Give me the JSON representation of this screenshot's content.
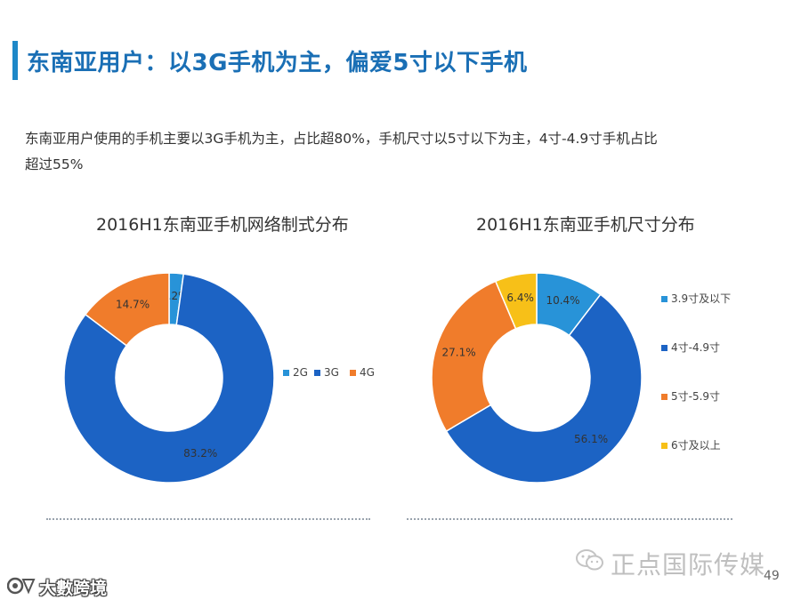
{
  "page": {
    "title": "东南亚用户：以3G手机为主，偏爱5寸以下手机",
    "description": "东南亚用户使用的手机主要以3G手机为主，占比超80%，手机尺寸以5寸以下为主，4寸-4.9寸手机占比超过55%",
    "page_number": "49",
    "watermark": "正点国际传媒",
    "brand_mark": "大數跨境"
  },
  "colors": {
    "blue": "#1c63c4",
    "light_blue": "#2893d8",
    "orange": "#f07c2b",
    "yellow": "#f7c018",
    "title": "#1a6fb5"
  },
  "chart_data": [
    {
      "type": "pie",
      "donut": true,
      "title": "2016H1东南亚手机网络制式分布",
      "legend_position": "right",
      "slices": [
        {
          "name": "2G",
          "value": 2.2,
          "label": "2.2%",
          "color": "#2893d8"
        },
        {
          "name": "3G",
          "value": 83.2,
          "label": "83.2%",
          "color": "#1c63c4"
        },
        {
          "name": "4G",
          "value": 14.7,
          "label": "14.7%",
          "color": "#f07c2b"
        }
      ]
    },
    {
      "type": "pie",
      "donut": true,
      "title": "2016H1东南亚手机尺寸分布",
      "legend_position": "right",
      "slices": [
        {
          "name": "3.9寸及以下",
          "value": 10.4,
          "label": "10.4%",
          "color": "#2893d8"
        },
        {
          "name": "4寸-4.9寸",
          "value": 56.1,
          "label": "56.1%",
          "color": "#1c63c4"
        },
        {
          "name": "5寸-5.9寸",
          "value": 27.1,
          "label": "27.1%",
          "color": "#f07c2b"
        },
        {
          "name": "6寸及以上",
          "value": 6.4,
          "label": "6.4%",
          "color": "#f7c018"
        }
      ]
    }
  ]
}
